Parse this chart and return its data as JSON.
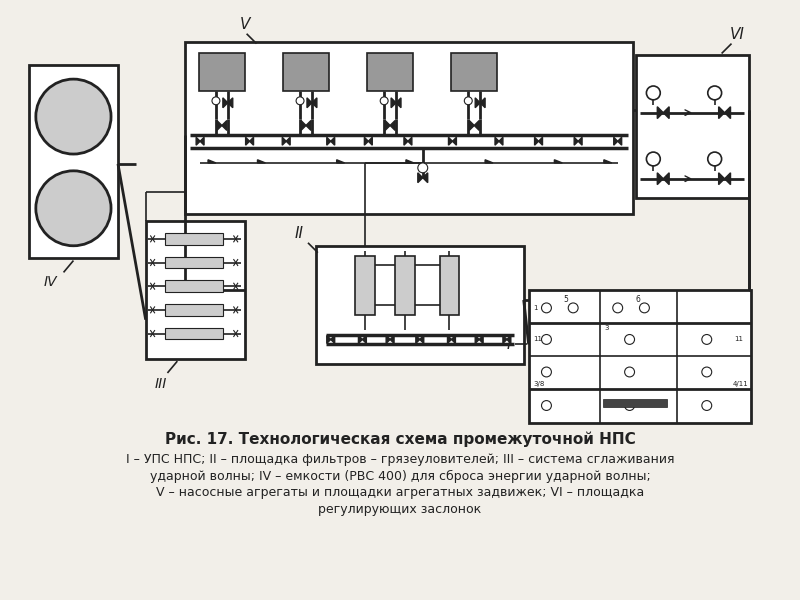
{
  "bg_color": "#f2efe9",
  "line_color": "#222222",
  "fill_gray": "#999999",
  "fill_dark": "#444444",
  "fill_light": "#cccccc",
  "title": "Рис. 17. Технологическая схема промежуточной НПС",
  "caption_line1": "I – УПС НПС; II – площадка фильтров – грязеуловителей; III – система сглаживания",
  "caption_line2": "ударной волны; IV – емкости (РВС 400) для сброса энергии ударной волны;",
  "caption_line3": "V – насосные агрегаты и площадки агрегатных задвижек; VI – площадка",
  "caption_line4": "регулирующих заслонок"
}
